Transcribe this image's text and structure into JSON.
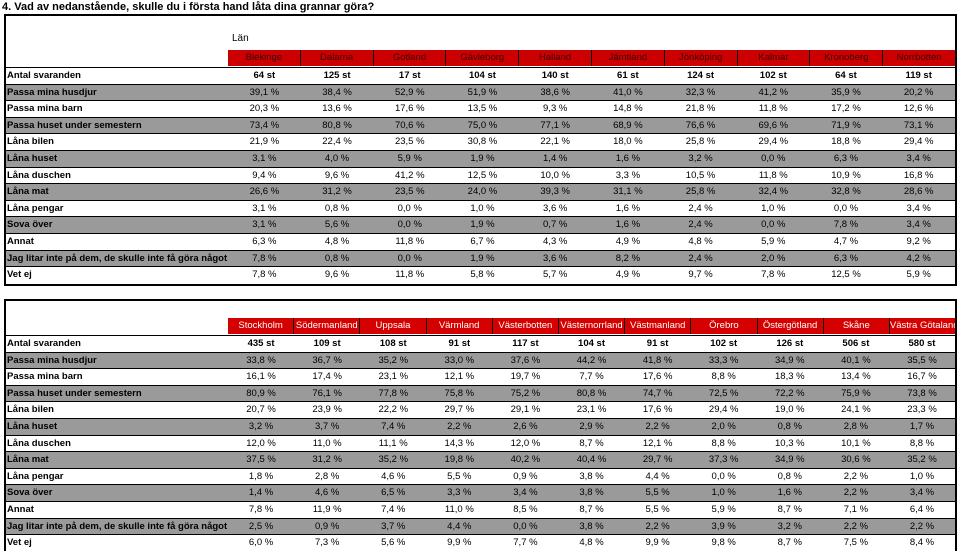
{
  "title": "4. Vad av nedanstående, skulle du i första hand låta dina grannar göra?",
  "tables": [
    {
      "header_label": "Län",
      "regions": [
        "Blekinge",
        "Dalarna",
        "Gotland",
        "Gävleborg",
        "Halland",
        "Jämtland",
        "Jönköping",
        "Kalmar",
        "Kronoberg",
        "Norrbotten"
      ],
      "rows": [
        {
          "label": "Antal svaranden",
          "values": [
            "64 st",
            "125 st",
            "17 st",
            "104 st",
            "140 st",
            "61 st",
            "124 st",
            "102 st",
            "64 st",
            "119 st"
          ]
        },
        {
          "label": "Passa mina husdjur",
          "values": [
            "39,1 %",
            "38,4 %",
            "52,9 %",
            "51,9 %",
            "38,6 %",
            "41,0 %",
            "32,3 %",
            "41,2 %",
            "35,9 %",
            "20,2 %"
          ]
        },
        {
          "label": "Passa mina barn",
          "values": [
            "20,3 %",
            "13,6 %",
            "17,6 %",
            "13,5 %",
            "9,3 %",
            "14,8 %",
            "21,8 %",
            "11,8 %",
            "17,2 %",
            "12,6 %"
          ]
        },
        {
          "label": "Passa huset under semestern",
          "values": [
            "73,4 %",
            "80,8 %",
            "70,6 %",
            "75,0 %",
            "77,1 %",
            "68,9 %",
            "76,6 %",
            "69,6 %",
            "71,9 %",
            "73,1 %"
          ]
        },
        {
          "label": "Låna bilen",
          "values": [
            "21,9 %",
            "22,4 %",
            "23,5 %",
            "30,8 %",
            "22,1 %",
            "18,0 %",
            "25,8 %",
            "29,4 %",
            "18,8 %",
            "29,4 %"
          ]
        },
        {
          "label": "Låna huset",
          "values": [
            "3,1 %",
            "4,0 %",
            "5,9 %",
            "1,9 %",
            "1,4 %",
            "1,6 %",
            "3,2 %",
            "0,0 %",
            "6,3 %",
            "3,4 %"
          ]
        },
        {
          "label": "Låna duschen",
          "values": [
            "9,4 %",
            "9,6 %",
            "41,2 %",
            "12,5 %",
            "10,0 %",
            "3,3 %",
            "10,5 %",
            "11,8 %",
            "10,9 %",
            "16,8 %"
          ]
        },
        {
          "label": "Låna mat",
          "values": [
            "26,6 %",
            "31,2 %",
            "23,5 %",
            "24,0 %",
            "39,3 %",
            "31,1 %",
            "25,8 %",
            "32,4 %",
            "32,8 %",
            "28,6 %"
          ]
        },
        {
          "label": "Låna pengar",
          "values": [
            "3,1 %",
            "0,8 %",
            "0,0 %",
            "1,0 %",
            "3,6 %",
            "1,6 %",
            "2,4 %",
            "1,0 %",
            "0,0 %",
            "3,4 %"
          ]
        },
        {
          "label": "Sova över",
          "values": [
            "3,1 %",
            "5,6 %",
            "0,0 %",
            "1,9 %",
            "0,7 %",
            "1,6 %",
            "2,4 %",
            "0,0 %",
            "7,8 %",
            "3,4 %"
          ]
        },
        {
          "label": "Annat",
          "values": [
            "6,3 %",
            "4,8 %",
            "11,8 %",
            "6,7 %",
            "4,3 %",
            "4,9 %",
            "4,8 %",
            "5,9 %",
            "4,7 %",
            "9,2 %"
          ]
        },
        {
          "label": "Jag litar inte på dem, de skulle inte få göra något å",
          "values": [
            "7,8 %",
            "0,8 %",
            "0,0 %",
            "1,9 %",
            "3,6 %",
            "8,2 %",
            "2,4 %",
            "2,0 %",
            "6,3 %",
            "4,2 %"
          ]
        },
        {
          "label": "Vet ej",
          "values": [
            "7,8 %",
            "9,6 %",
            "11,8 %",
            "5,8 %",
            "5,7 %",
            "4,9 %",
            "9,7 %",
            "7,8 %",
            "12,5 %",
            "5,9 %"
          ]
        }
      ]
    },
    {
      "header_label": "",
      "regions": [
        "Stockholm",
        "Södermanland",
        "Uppsala",
        "Värmland",
        "Västerbotten",
        "Västernorrland",
        "Västmanland",
        "Örebro",
        "Östergötland",
        "Skåne",
        "Västra Götaland"
      ],
      "rows": [
        {
          "label": "Antal svaranden",
          "values": [
            "435 st",
            "109 st",
            "108 st",
            "91 st",
            "117 st",
            "104 st",
            "91 st",
            "102 st",
            "126 st",
            "506 st",
            "580 st"
          ]
        },
        {
          "label": "Passa mina husdjur",
          "values": [
            "33,8 %",
            "36,7 %",
            "35,2 %",
            "33,0 %",
            "37,6 %",
            "44,2 %",
            "41,8 %",
            "33,3 %",
            "34,9 %",
            "40,1 %",
            "35,5 %"
          ]
        },
        {
          "label": "Passa mina barn",
          "values": [
            "16,1 %",
            "17,4 %",
            "23,1 %",
            "12,1 %",
            "19,7 %",
            "7,7 %",
            "17,6 %",
            "8,8 %",
            "18,3 %",
            "13,4 %",
            "16,7 %"
          ]
        },
        {
          "label": "Passa huset under semestern",
          "values": [
            "80,9 %",
            "76,1 %",
            "77,8 %",
            "75,8 %",
            "75,2 %",
            "80,8 %",
            "74,7 %",
            "72,5 %",
            "72,2 %",
            "75,9 %",
            "73,8 %"
          ]
        },
        {
          "label": "Låna bilen",
          "values": [
            "20,7 %",
            "23,9 %",
            "22,2 %",
            "29,7 %",
            "29,1 %",
            "23,1 %",
            "17,6 %",
            "29,4 %",
            "19,0 %",
            "24,1 %",
            "23,3 %"
          ]
        },
        {
          "label": "Låna huset",
          "values": [
            "3,2 %",
            "3,7 %",
            "7,4 %",
            "2,2 %",
            "2,6 %",
            "2,9 %",
            "2,2 %",
            "2,0 %",
            "0,8 %",
            "2,8 %",
            "1,7 %"
          ]
        },
        {
          "label": "Låna duschen",
          "values": [
            "12,0 %",
            "11,0 %",
            "11,1 %",
            "14,3 %",
            "12,0 %",
            "8,7 %",
            "12,1 %",
            "8,8 %",
            "10,3 %",
            "10,1 %",
            "8,8 %"
          ]
        },
        {
          "label": "Låna mat",
          "values": [
            "37,5 %",
            "31,2 %",
            "35,2 %",
            "19,8 %",
            "40,2 %",
            "40,4 %",
            "29,7 %",
            "37,3 %",
            "34,9 %",
            "30,6 %",
            "35,2 %"
          ]
        },
        {
          "label": "Låna pengar",
          "values": [
            "1,8 %",
            "2,8 %",
            "4,6 %",
            "5,5 %",
            "0,9 %",
            "3,8 %",
            "4,4 %",
            "0,0 %",
            "0,8 %",
            "2,2 %",
            "1,0 %"
          ]
        },
        {
          "label": "Sova över",
          "values": [
            "1,4 %",
            "4,6 %",
            "6,5 %",
            "3,3 %",
            "3,4 %",
            "3,8 %",
            "5,5 %",
            "1,0 %",
            "1,6 %",
            "2,2 %",
            "3,4 %"
          ]
        },
        {
          "label": "Annat",
          "values": [
            "7,8 %",
            "11,9 %",
            "7,4 %",
            "11,0 %",
            "8,5 %",
            "8,7 %",
            "5,5 %",
            "5,9 %",
            "8,7 %",
            "7,1 %",
            "6,4 %"
          ]
        },
        {
          "label": "Jag litar inte på dem, de skulle inte få göra något å",
          "values": [
            "2,5 %",
            "0,9 %",
            "3,7 %",
            "4,4 %",
            "0,0 %",
            "3,8 %",
            "2,2 %",
            "3,9 %",
            "3,2 %",
            "2,2 %",
            "2,2 %"
          ]
        },
        {
          "label": "Vet ej",
          "values": [
            "6,0 %",
            "7,3 %",
            "5,6 %",
            "9,9 %",
            "7,7 %",
            "4,8 %",
            "9,9 %",
            "9,8 %",
            "8,7 %",
            "7,5 %",
            "8,4 %"
          ]
        }
      ]
    }
  ],
  "colors": {
    "header_red": "#d50000",
    "row_gray": "#9a9a9a"
  }
}
